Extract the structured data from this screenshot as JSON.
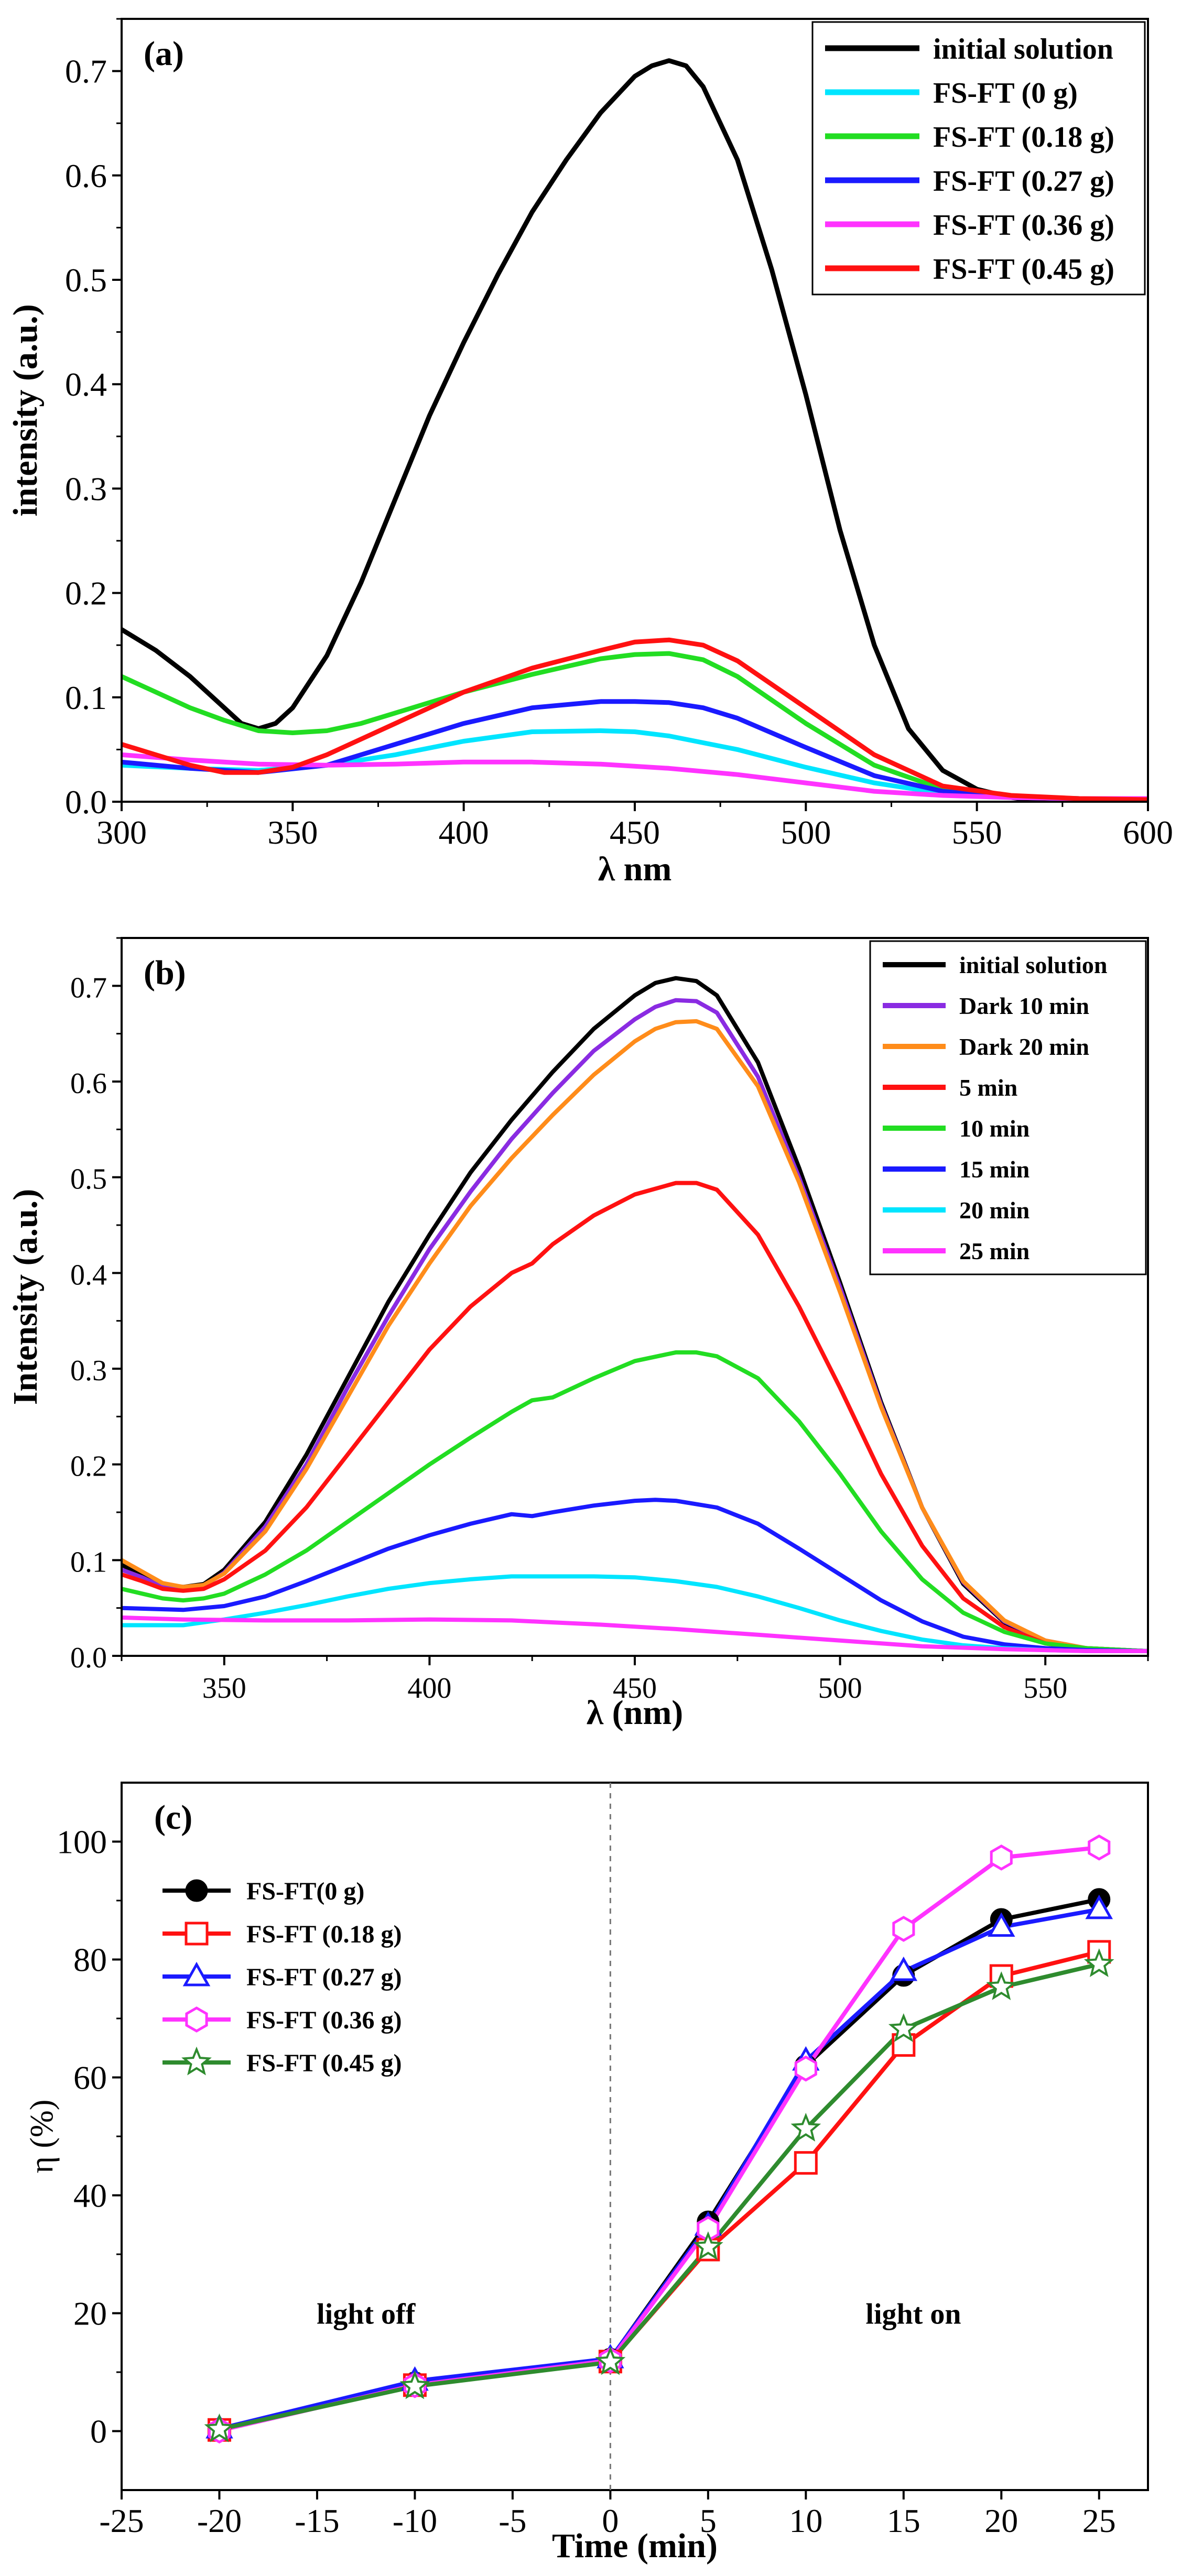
{
  "chart_data": [
    {
      "panel_label": "(a)",
      "type": "line",
      "xlabel": "λ nm",
      "ylabel": "intensity (a.u.)",
      "xlim": [
        300,
        600
      ],
      "ylim": [
        0,
        0.75
      ],
      "xticks": [
        300,
        350,
        400,
        450,
        500,
        550,
        600
      ],
      "yticks": [
        0.0,
        0.1,
        0.2,
        0.3,
        0.4,
        0.5,
        0.6,
        0.7
      ],
      "ytick_labels": [
        "0.0",
        "0.1",
        "0.2",
        "0.3",
        "0.4",
        "0.5",
        "0.6",
        "0.7"
      ],
      "legend_position": "top-right",
      "series": [
        {
          "name": "initial solution",
          "color": "#000000",
          "x": [
            300,
            310,
            320,
            330,
            335,
            340,
            345,
            350,
            360,
            370,
            380,
            390,
            400,
            410,
            420,
            430,
            440,
            450,
            455,
            460,
            465,
            470,
            480,
            490,
            500,
            510,
            520,
            530,
            540,
            550,
            560,
            570,
            580,
            590,
            600
          ],
          "y": [
            0.165,
            0.145,
            0.12,
            0.09,
            0.075,
            0.07,
            0.075,
            0.09,
            0.14,
            0.21,
            0.29,
            0.37,
            0.44,
            0.505,
            0.565,
            0.615,
            0.66,
            0.695,
            0.705,
            0.71,
            0.705,
            0.685,
            0.615,
            0.51,
            0.39,
            0.26,
            0.15,
            0.07,
            0.03,
            0.012,
            0.004,
            0.0,
            0.0,
            0.0,
            0.0
          ]
        },
        {
          "name": "FS-FT (0 g)",
          "color": "#00e5ff",
          "x": [
            300,
            320,
            340,
            360,
            380,
            400,
            420,
            440,
            450,
            460,
            480,
            500,
            520,
            540,
            560,
            580,
            600
          ],
          "y": [
            0.035,
            0.032,
            0.03,
            0.035,
            0.045,
            0.058,
            0.067,
            0.068,
            0.067,
            0.063,
            0.05,
            0.033,
            0.018,
            0.008,
            0.004,
            0.003,
            0.003
          ]
        },
        {
          "name": "FS-FT (0.18 g)",
          "color": "#22dd22",
          "x": [
            300,
            310,
            320,
            330,
            340,
            350,
            360,
            370,
            380,
            400,
            420,
            440,
            450,
            460,
            470,
            480,
            500,
            520,
            540,
            560,
            580,
            600
          ],
          "y": [
            0.12,
            0.105,
            0.09,
            0.078,
            0.068,
            0.066,
            0.068,
            0.075,
            0.085,
            0.105,
            0.122,
            0.137,
            0.141,
            0.142,
            0.136,
            0.12,
            0.075,
            0.035,
            0.012,
            0.005,
            0.003,
            0.002
          ]
        },
        {
          "name": "FS-FT (0.27 g)",
          "color": "#1a1aff",
          "x": [
            300,
            320,
            340,
            360,
            380,
            400,
            420,
            440,
            450,
            460,
            470,
            480,
            500,
            520,
            540,
            560,
            580,
            600
          ],
          "y": [
            0.038,
            0.032,
            0.028,
            0.035,
            0.055,
            0.075,
            0.09,
            0.096,
            0.096,
            0.095,
            0.09,
            0.08,
            0.052,
            0.025,
            0.01,
            0.004,
            0.003,
            0.003
          ]
        },
        {
          "name": "FS-FT (0.36 g)",
          "color": "#ff33ff",
          "x": [
            300,
            320,
            340,
            360,
            380,
            400,
            420,
            440,
            460,
            480,
            500,
            520,
            540,
            560,
            580,
            600
          ],
          "y": [
            0.045,
            0.04,
            0.036,
            0.035,
            0.036,
            0.038,
            0.038,
            0.036,
            0.032,
            0.026,
            0.018,
            0.01,
            0.006,
            0.004,
            0.003,
            0.003
          ]
        },
        {
          "name": "FS-FT (0.45 g)",
          "color": "#ff1111",
          "x": [
            300,
            310,
            320,
            330,
            340,
            350,
            360,
            380,
            400,
            420,
            440,
            450,
            460,
            470,
            480,
            500,
            520,
            540,
            560,
            580,
            600
          ],
          "y": [
            0.055,
            0.045,
            0.035,
            0.028,
            0.028,
            0.033,
            0.045,
            0.075,
            0.105,
            0.128,
            0.145,
            0.153,
            0.155,
            0.15,
            0.135,
            0.09,
            0.045,
            0.015,
            0.006,
            0.003,
            0.002
          ]
        }
      ]
    },
    {
      "panel_label": "(b)",
      "type": "line",
      "xlabel": "λ (nm)",
      "ylabel": "Intensity (a.u.)",
      "xlim": [
        325,
        575
      ],
      "ylim": [
        0,
        0.75
      ],
      "xticks": [
        350,
        400,
        450,
        500,
        550
      ],
      "yticks": [
        0.0,
        0.1,
        0.2,
        0.3,
        0.4,
        0.5,
        0.6,
        0.7
      ],
      "ytick_labels": [
        "0.0",
        "0.1",
        "0.2",
        "0.3",
        "0.4",
        "0.5",
        "0.6",
        "0.7"
      ],
      "legend_position": "top-right",
      "series": [
        {
          "name": "initial solution",
          "color": "#000000",
          "x": [
            325,
            330,
            335,
            340,
            345,
            350,
            360,
            370,
            380,
            390,
            400,
            410,
            420,
            430,
            440,
            450,
            455,
            460,
            465,
            470,
            480,
            490,
            500,
            510,
            520,
            530,
            540,
            550,
            560,
            575
          ],
          "y": [
            0.095,
            0.085,
            0.075,
            0.072,
            0.075,
            0.09,
            0.14,
            0.21,
            0.29,
            0.37,
            0.44,
            0.505,
            0.56,
            0.61,
            0.655,
            0.69,
            0.703,
            0.708,
            0.705,
            0.69,
            0.62,
            0.51,
            0.39,
            0.265,
            0.155,
            0.075,
            0.035,
            0.015,
            0.008,
            0.005
          ]
        },
        {
          "name": "Dark 10 min",
          "color": "#8a2be2",
          "x": [
            325,
            330,
            335,
            340,
            345,
            350,
            360,
            370,
            380,
            390,
            400,
            410,
            420,
            430,
            440,
            450,
            455,
            460,
            465,
            470,
            480,
            490,
            500,
            510,
            520,
            530,
            540,
            550,
            560,
            575
          ],
          "y": [
            0.09,
            0.082,
            0.072,
            0.07,
            0.073,
            0.087,
            0.135,
            0.2,
            0.28,
            0.355,
            0.425,
            0.485,
            0.54,
            0.588,
            0.632,
            0.665,
            0.678,
            0.685,
            0.684,
            0.672,
            0.605,
            0.5,
            0.385,
            0.262,
            0.155,
            0.077,
            0.036,
            0.016,
            0.008,
            0.005
          ]
        },
        {
          "name": "Dark 20 min",
          "color": "#ff8c1a",
          "x": [
            325,
            330,
            335,
            340,
            345,
            350,
            360,
            370,
            380,
            390,
            400,
            410,
            420,
            430,
            440,
            450,
            455,
            460,
            465,
            470,
            480,
            490,
            500,
            510,
            520,
            530,
            540,
            550,
            560,
            575
          ],
          "y": [
            0.1,
            0.088,
            0.076,
            0.072,
            0.074,
            0.086,
            0.13,
            0.195,
            0.27,
            0.345,
            0.41,
            0.47,
            0.52,
            0.565,
            0.607,
            0.642,
            0.655,
            0.662,
            0.663,
            0.655,
            0.595,
            0.495,
            0.38,
            0.26,
            0.155,
            0.078,
            0.037,
            0.016,
            0.008,
            0.005
          ]
        },
        {
          "name": "5 min",
          "color": "#ff1111",
          "x": [
            325,
            330,
            335,
            340,
            345,
            350,
            360,
            370,
            380,
            390,
            400,
            410,
            420,
            425,
            430,
            440,
            450,
            460,
            465,
            470,
            480,
            490,
            500,
            510,
            520,
            530,
            540,
            550,
            560,
            575
          ],
          "y": [
            0.085,
            0.078,
            0.07,
            0.068,
            0.07,
            0.08,
            0.11,
            0.155,
            0.21,
            0.265,
            0.32,
            0.365,
            0.4,
            0.41,
            0.43,
            0.46,
            0.482,
            0.494,
            0.494,
            0.487,
            0.44,
            0.365,
            0.28,
            0.19,
            0.115,
            0.06,
            0.03,
            0.013,
            0.007,
            0.005
          ]
        },
        {
          "name": "10 min",
          "color": "#22dd22",
          "x": [
            325,
            330,
            335,
            340,
            345,
            350,
            360,
            370,
            380,
            390,
            400,
            410,
            420,
            425,
            430,
            440,
            450,
            460,
            465,
            470,
            480,
            490,
            500,
            510,
            520,
            530,
            540,
            550,
            560,
            575
          ],
          "y": [
            0.07,
            0.065,
            0.06,
            0.058,
            0.06,
            0.065,
            0.085,
            0.11,
            0.14,
            0.17,
            0.2,
            0.228,
            0.255,
            0.267,
            0.27,
            0.29,
            0.308,
            0.317,
            0.317,
            0.313,
            0.29,
            0.245,
            0.19,
            0.13,
            0.08,
            0.045,
            0.025,
            0.013,
            0.008,
            0.005
          ]
        },
        {
          "name": "15 min",
          "color": "#1a1aff",
          "x": [
            325,
            340,
            350,
            360,
            370,
            380,
            390,
            400,
            410,
            420,
            425,
            430,
            440,
            450,
            455,
            460,
            470,
            480,
            490,
            500,
            510,
            520,
            530,
            540,
            550,
            560,
            575
          ],
          "y": [
            0.05,
            0.048,
            0.052,
            0.062,
            0.078,
            0.095,
            0.112,
            0.126,
            0.138,
            0.148,
            0.146,
            0.15,
            0.157,
            0.162,
            0.163,
            0.162,
            0.155,
            0.138,
            0.112,
            0.085,
            0.058,
            0.036,
            0.02,
            0.012,
            0.008,
            0.006,
            0.005
          ]
        },
        {
          "name": "20 min",
          "color": "#00e5ff",
          "x": [
            325,
            340,
            350,
            360,
            370,
            380,
            390,
            400,
            410,
            420,
            430,
            440,
            450,
            460,
            470,
            480,
            490,
            500,
            510,
            520,
            530,
            540,
            550,
            560,
            575
          ],
          "y": [
            0.032,
            0.032,
            0.038,
            0.045,
            0.053,
            0.062,
            0.07,
            0.076,
            0.08,
            0.083,
            0.083,
            0.083,
            0.082,
            0.078,
            0.072,
            0.062,
            0.05,
            0.037,
            0.026,
            0.017,
            0.011,
            0.008,
            0.006,
            0.005,
            0.005
          ]
        },
        {
          "name": "25 min",
          "color": "#ff33ff",
          "x": [
            325,
            340,
            360,
            380,
            400,
            420,
            430,
            440,
            460,
            480,
            500,
            520,
            540,
            560,
            575
          ],
          "y": [
            0.04,
            0.038,
            0.037,
            0.037,
            0.038,
            0.037,
            0.035,
            0.033,
            0.028,
            0.022,
            0.016,
            0.01,
            0.007,
            0.005,
            0.005
          ]
        }
      ]
    },
    {
      "panel_label": "(c)",
      "type": "line",
      "xlabel": "Time (min)",
      "ylabel": "η (%)",
      "xlim": [
        -25,
        27.5
      ],
      "ylim": [
        -10,
        110
      ],
      "xticks": [
        -25,
        -20,
        -15,
        -10,
        -5,
        0,
        5,
        10,
        15,
        20,
        25
      ],
      "yticks": [
        0,
        20,
        40,
        60,
        80,
        100
      ],
      "divider_x": 0,
      "annotations": [
        {
          "text": "light off",
          "x": -12.5,
          "y": 20
        },
        {
          "text": "light on",
          "x": 15.5,
          "y": 20
        }
      ],
      "legend_position": "top-left",
      "x": [
        -20,
        -10,
        0,
        5,
        10,
        15,
        20,
        25
      ],
      "series": [
        {
          "name": "FS-FT(0 g)",
          "color": "#000000",
          "marker": "circle",
          "values": [
            0.3,
            8.2,
            12.2,
            35.5,
            62.0,
            77.3,
            86.8,
            90.2
          ]
        },
        {
          "name": "FS-FT (0.18 g)",
          "color": "#ff1111",
          "marker": "square",
          "values": [
            0.2,
            7.8,
            11.8,
            30.8,
            45.5,
            65.5,
            77.2,
            81.3
          ]
        },
        {
          "name": "FS-FT (0.27 g)",
          "color": "#1a1aff",
          "marker": "triangle",
          "values": [
            0.4,
            8.5,
            12.3,
            34.8,
            62.8,
            78.0,
            85.5,
            88.5
          ]
        },
        {
          "name": "FS-FT (0.36 g)",
          "color": "#ff33ff",
          "marker": "hexagon",
          "values": [
            0.1,
            7.8,
            12.0,
            34.3,
            61.5,
            85.2,
            97.3,
            99.0
          ]
        },
        {
          "name": "FS-FT (0.45 g)",
          "color": "#2e8b2e",
          "marker": "star",
          "values": [
            0.3,
            7.6,
            11.7,
            31.2,
            51.3,
            68.2,
            75.3,
            79.2
          ]
        }
      ]
    }
  ]
}
